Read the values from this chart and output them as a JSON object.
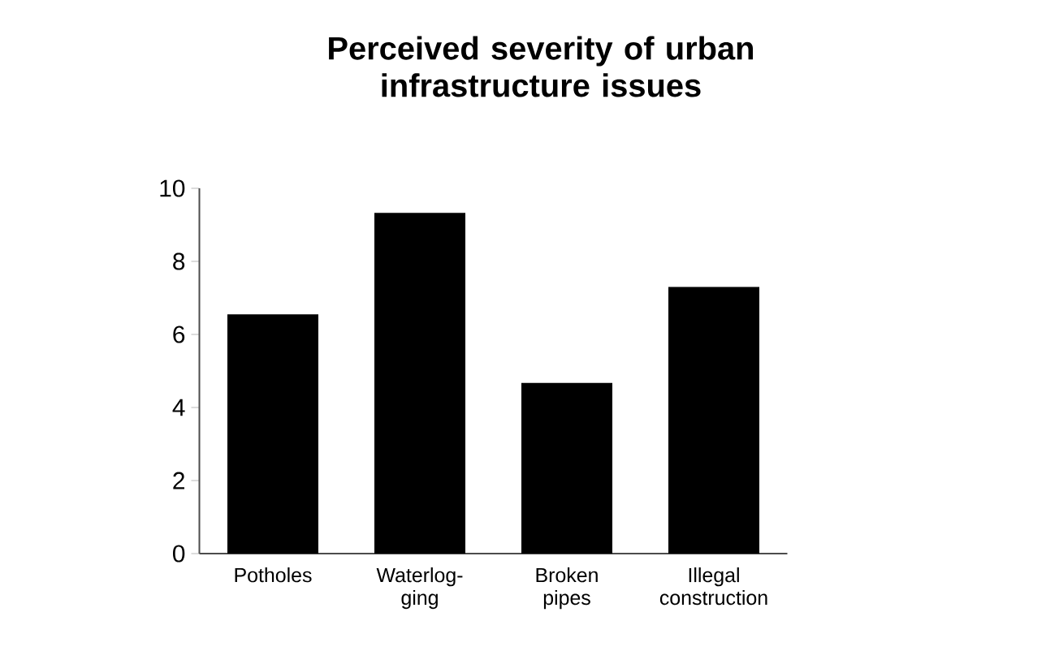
{
  "chart_data": {
    "type": "bar",
    "title": "Perceived severity of urban infrastructure issues",
    "categories": [
      "Potholes",
      "Waterlog-ging",
      "Broken pipes",
      "Illegal construction"
    ],
    "values": [
      6.55,
      9.33,
      4.67,
      7.3
    ],
    "color": "#000000",
    "ylim": [
      0,
      10
    ],
    "yticks": [
      0,
      2,
      4,
      6,
      8,
      10
    ]
  }
}
